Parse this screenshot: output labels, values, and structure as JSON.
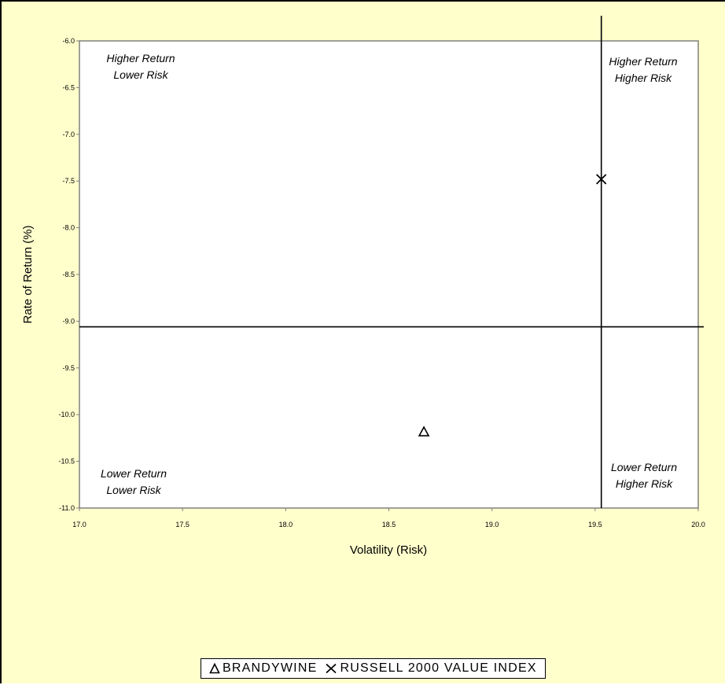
{
  "chart_data": {
    "type": "scatter",
    "title": "",
    "xlabel": "Volatility (Risk)",
    "ylabel": "Rate of Return (%)",
    "xlim": [
      17.0,
      20.0
    ],
    "ylim": [
      -11.0,
      -6.0
    ],
    "x_ticks": [
      "17.0",
      "17.5",
      "18.0",
      "18.5",
      "19.0",
      "19.5",
      "20.0"
    ],
    "y_ticks": [
      "-6.0",
      "-6.5",
      "-7.0",
      "-7.5",
      "-8.0",
      "-8.5",
      "-9.0",
      "-9.5",
      "-10.0",
      "-10.5",
      "-11.0"
    ],
    "grid": false,
    "legend_position": "bottom",
    "series": [
      {
        "name": "BRANDYWINE",
        "marker": "triangle",
        "x": [
          18.67
        ],
        "y": [
          -10.18
        ]
      },
      {
        "name": "RUSSELL 2000 VALUE INDEX",
        "marker": "x",
        "x": [
          19.53
        ],
        "y": [
          -7.48
        ]
      }
    ],
    "reference_lines": {
      "vertical_x": 19.53,
      "horizontal_y": -9.06
    },
    "quadrant_labels": {
      "top_left": [
        "Higher Return",
        "Lower Risk"
      ],
      "top_right": [
        "Higher Return",
        "Higher Risk"
      ],
      "bottom_left": [
        "Lower Return",
        "Lower Risk"
      ],
      "bottom_right": [
        "Lower Return",
        "Higher Risk"
      ]
    },
    "colors": {
      "background": "#ffffcc",
      "plot_area": "#ffffff",
      "marker": "#000000"
    }
  }
}
